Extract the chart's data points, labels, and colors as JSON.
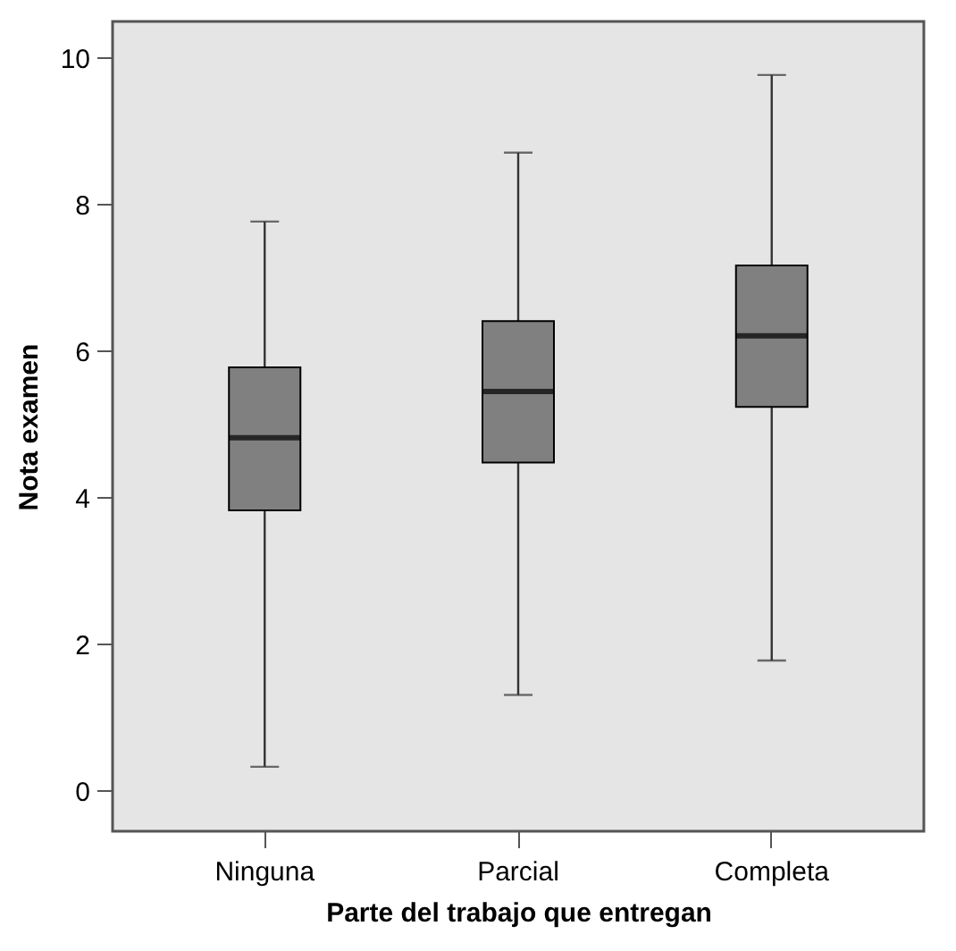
{
  "chart_data": {
    "type": "box",
    "xlabel": "Parte del trabajo que entregan",
    "ylabel": "Nota examen",
    "categories": [
      "Ninguna",
      "Parcial",
      "Completa"
    ],
    "color": "#808080",
    "boxes": [
      {
        "low": 0.33,
        "q1": 3.83,
        "median": 4.82,
        "q3": 5.78,
        "high": 7.77
      },
      {
        "low": 1.31,
        "q1": 4.48,
        "median": 5.45,
        "q3": 6.41,
        "high": 8.71
      },
      {
        "low": 1.78,
        "q1": 5.24,
        "median": 6.21,
        "q3": 7.17,
        "high": 9.77
      }
    ],
    "ylim": [
      -0.55,
      10.5
    ],
    "yticks": [
      0,
      2,
      4,
      6,
      8,
      10
    ],
    "grid": false
  }
}
